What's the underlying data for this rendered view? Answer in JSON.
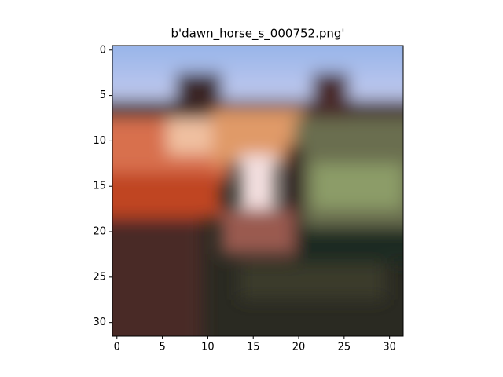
{
  "chart_data": {
    "type": "image",
    "title": "b'dawn_horse_s_000752.png'",
    "xlim": [
      -0.5,
      31.5
    ],
    "ylim": [
      31.5,
      -0.5
    ],
    "xticks": [
      0,
      5,
      10,
      15,
      20,
      25,
      30
    ],
    "yticks": [
      0,
      5,
      10,
      15,
      20,
      25,
      30
    ]
  }
}
